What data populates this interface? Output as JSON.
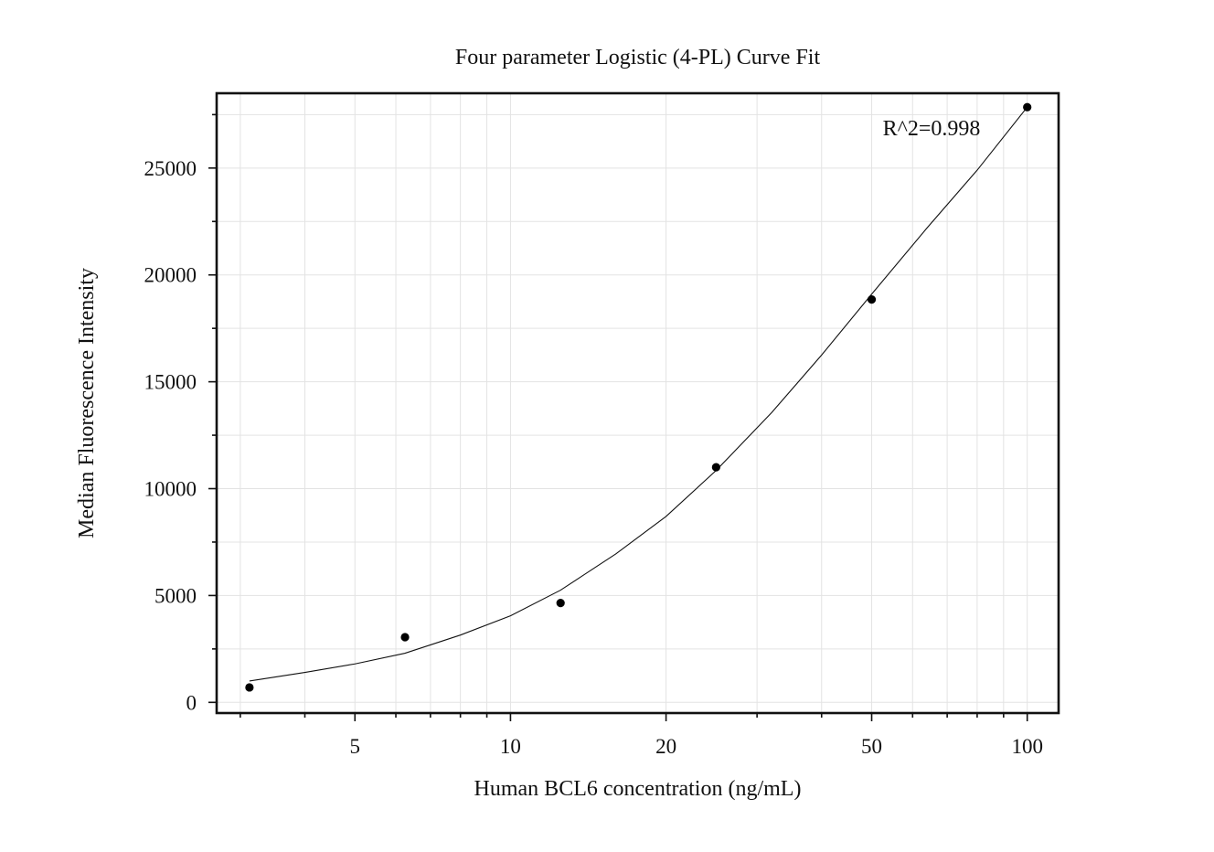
{
  "chart_data": {
    "type": "scatter",
    "title": "Four parameter Logistic (4-PL) Curve Fit",
    "xlabel": "Human BCL6 concentration (ng/mL)",
    "ylabel": "Median Fluorescence Intensity",
    "x_scale": "log",
    "xlim": [
      2.7,
      115
    ],
    "ylim": [
      -500,
      28500
    ],
    "x_ticks": [
      5,
      10,
      20,
      50,
      100
    ],
    "x_minor_ticks": [
      3,
      4,
      6,
      7,
      8,
      9,
      30,
      40,
      60,
      70,
      80,
      90
    ],
    "y_ticks": [
      0,
      5000,
      10000,
      15000,
      20000,
      25000
    ],
    "y_minor_ticks": [
      2500,
      7500,
      12500,
      17500,
      22500,
      27500
    ],
    "grid": true,
    "annotation": "R^2=0.998",
    "colors": {
      "points": "#000000",
      "curve": "#111111",
      "grid": "#e3e3e3"
    },
    "series": [
      {
        "type": "scatter",
        "x": [
          3.125,
          6.25,
          12.5,
          25,
          50,
          100
        ],
        "y": [
          700,
          3050,
          4650,
          11000,
          18850,
          27850
        ]
      },
      {
        "type": "line",
        "x": [
          3.125,
          4,
          5,
          6.25,
          8,
          10,
          12.5,
          16,
          20,
          25,
          32,
          40,
          50,
          64,
          80,
          100
        ],
        "y": [
          1000,
          1400,
          1800,
          2300,
          3150,
          4050,
          5250,
          6950,
          8700,
          10850,
          13550,
          16250,
          19100,
          22200,
          24900,
          27850
        ]
      }
    ]
  }
}
